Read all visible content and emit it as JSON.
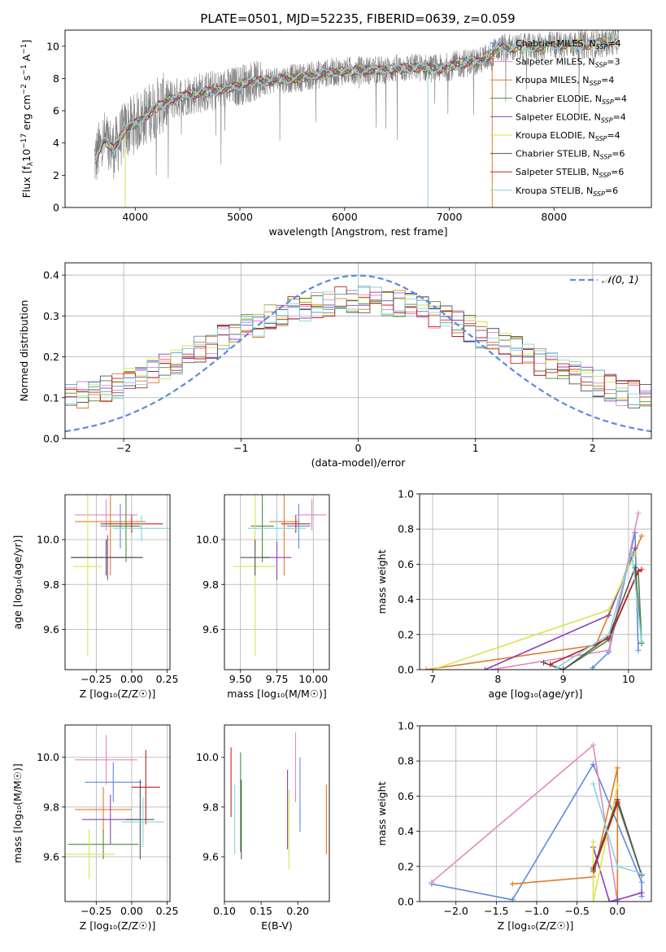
{
  "figure": {
    "title": "PLATE=0501, MJD=52235, FIBERID=0639, z=0.059"
  },
  "colors": {
    "series": [
      "#5b8bdc",
      "#e586c2",
      "#e07b2a",
      "#4d8a3e",
      "#8d3fb5",
      "#d8e54e",
      "#555555",
      "#c4221f",
      "#84d6de"
    ],
    "data": "#808080",
    "gauss": "#5b8bdc",
    "grid": "#b0b0b0"
  },
  "chart_data": [
    {
      "id": "spectrum",
      "type": "line",
      "title": "PLATE=0501, MJD=52235, FIBERID=0639, z=0.059",
      "xlabel": "wavelength [Angstrom, rest frame]",
      "ylabel_main": "Flux [f",
      "ylabel_sub": "λ",
      "ylabel_rest": "10",
      "ylabel_exp1": "−17",
      "ylabel_mid": " erg cm",
      "ylabel_exp2": "−2",
      "ylabel_s": " s",
      "ylabel_exp3": "−1",
      "ylabel_end": " A",
      "ylabel_exp4": "−1",
      "ylabel_close": "]",
      "xlim": [
        3330,
        8930
      ],
      "ylim": [
        0,
        11
      ],
      "xticks": [
        4000,
        5000,
        6000,
        7000,
        8000
      ],
      "yticks": [
        0,
        2,
        4,
        6,
        8,
        10
      ],
      "grid": false,
      "legend_position": "top-right",
      "legend": [
        {
          "base": "Chabrier MILES, N",
          "sub": "SSP",
          "rest": "=4"
        },
        {
          "base": "Salpeter MILES, N",
          "sub": "SSP",
          "rest": "=3"
        },
        {
          "base": "Kroupa MILES, N",
          "sub": "SSP",
          "rest": "=4"
        },
        {
          "base": "Chabrier ELODIE, N",
          "sub": "SSP",
          "rest": "=4"
        },
        {
          "base": "Salpeter ELODIE, N",
          "sub": "SSP",
          "rest": "=4"
        },
        {
          "base": "Kroupa ELODIE, N",
          "sub": "SSP",
          "rest": "=4"
        },
        {
          "base": "Chabrier STELIB, N",
          "sub": "SSP",
          "rest": "=6"
        },
        {
          "base": "Salpeter STELIB, N",
          "sub": "SSP",
          "rest": "=6"
        },
        {
          "base": "Kroupa STELIB, N",
          "sub": "SSP",
          "rest": "=6"
        }
      ],
      "continuum": {
        "x": [
          3620,
          3700,
          3800,
          3900,
          4000,
          4100,
          4200,
          4300,
          4400,
          4500,
          4700,
          4900,
          5100,
          5300,
          5500,
          5700,
          5900,
          6100,
          6300,
          6500,
          6700,
          6900,
          7100,
          7300,
          7420,
          7500,
          7700,
          7900,
          8100,
          8300,
          8500,
          8620
        ],
        "y": [
          3.0,
          4.2,
          3.6,
          4.8,
          5.2,
          5.7,
          6.2,
          6.6,
          6.8,
          7.0,
          7.2,
          7.4,
          7.8,
          7.9,
          8.0,
          8.2,
          8.4,
          8.5,
          8.5,
          8.6,
          8.7,
          8.6,
          8.9,
          9.1,
          9.6,
          9.9,
          9.9,
          10.0,
          10.1,
          10.1,
          10.2,
          10.4
        ]
      }
    },
    {
      "id": "residuals",
      "type": "histogram",
      "xlabel": "(data-model)/error",
      "ylabel": "Normed distribution",
      "xlim": [
        -2.5,
        2.5
      ],
      "ylim": [
        0,
        0.43
      ],
      "xticks": [
        -2,
        -1,
        0,
        1,
        2
      ],
      "yticks": [
        0.0,
        0.1,
        0.2,
        0.3,
        0.4
      ],
      "grid": true,
      "bin_width": 0.1,
      "legend_label": "𝒩(0, 1)",
      "legend_position": "top-right",
      "gaussian": {
        "mean": 0,
        "sigma": 1
      }
    },
    {
      "id": "age-vs-Z",
      "type": "errorbar",
      "xlabel": "Z [log₁₀(Z/Z☉)]",
      "ylabel": "age  [log₁₀(age/yr)]",
      "xlim": [
        -0.47,
        0.27
      ],
      "ylim": [
        9.42,
        10.2
      ],
      "xticks": [
        -0.25,
        0.0,
        0.25
      ],
      "yticks": [
        9.6,
        9.8,
        10.0
      ],
      "grid": true,
      "points": [
        {
          "s": 0,
          "x": -0.08,
          "y": 10.06,
          "xe": 0.14,
          "ye": 0.1
        },
        {
          "s": 1,
          "x": -0.18,
          "y": 10.11,
          "xe": 0.22,
          "ye": 0.07
        },
        {
          "s": 2,
          "x": -0.15,
          "y": 10.08,
          "xe": 0.25,
          "ye": 0.24
        },
        {
          "s": 3,
          "x": -0.04,
          "y": 10.06,
          "xe": 0.1,
          "ye": 0.16
        },
        {
          "s": 4,
          "x": -0.17,
          "y": 9.92,
          "xe": 0.25,
          "ye": 0.1
        },
        {
          "s": 5,
          "x": -0.31,
          "y": 9.88,
          "xe": 0.1,
          "ye": 0.4
        },
        {
          "s": 6,
          "x": -0.18,
          "y": 9.92,
          "xe": 0.25,
          "ye": 0.08
        },
        {
          "s": 7,
          "x": 0.0,
          "y": 10.07,
          "xe": 0.22,
          "ye": 0.04
        },
        {
          "s": 8,
          "x": 0.07,
          "y": 10.05,
          "xe": 0.2,
          "ye": 0.06
        }
      ]
    },
    {
      "id": "age-vs-mass",
      "type": "errorbar",
      "xlabel": "mass [log₁₀(M/M☉)]",
      "ylabel": "",
      "xlim": [
        9.39,
        10.11
      ],
      "ylim": [
        9.42,
        10.2
      ],
      "xticks": [
        9.5,
        9.75,
        10.0
      ],
      "yticks": [
        9.6,
        9.8,
        10.0
      ],
      "grid": true,
      "points": [
        {
          "s": 0,
          "x": 9.9,
          "y": 10.06,
          "xe": 0.08,
          "ye": 0.1
        },
        {
          "s": 1,
          "x": 9.99,
          "y": 10.11,
          "xe": 0.1,
          "ye": 0.07
        },
        {
          "s": 2,
          "x": 9.8,
          "y": 10.08,
          "xe": 0.1,
          "ye": 0.24
        },
        {
          "s": 3,
          "x": 9.65,
          "y": 10.06,
          "xe": 0.08,
          "ye": 0.16
        },
        {
          "s": 4,
          "x": 9.75,
          "y": 9.92,
          "xe": 0.1,
          "ye": 0.1
        },
        {
          "s": 5,
          "x": 9.6,
          "y": 9.88,
          "xe": 0.15,
          "ye": 0.4
        },
        {
          "s": 6,
          "x": 9.6,
          "y": 9.92,
          "xe": 0.1,
          "ye": 0.08
        },
        {
          "s": 7,
          "x": 9.88,
          "y": 10.07,
          "xe": 0.1,
          "ye": 0.04
        },
        {
          "s": 8,
          "x": 9.75,
          "y": 10.05,
          "xe": 0.2,
          "ye": 0.06
        }
      ]
    },
    {
      "id": "mass-weight-vs-age",
      "type": "line",
      "xlabel": "age  [log₁₀(age/yr)]",
      "ylabel": "mass weight",
      "xlim": [
        6.8,
        10.35
      ],
      "ylim": [
        0,
        1
      ],
      "xticks": [
        7,
        8,
        9,
        10
      ],
      "yticks": [
        0.0,
        0.2,
        0.4,
        0.6,
        0.8,
        1.0
      ],
      "grid": true,
      "series": [
        {
          "s": 0,
          "x": [
            9.45,
            9.7,
            10.1,
            10.15
          ],
          "y": [
            0.01,
            0.1,
            0.78,
            0.11
          ]
        },
        {
          "s": 1,
          "x": [
            7.9,
            9.7,
            10.15
          ],
          "y": [
            0.0,
            0.11,
            0.89
          ]
        },
        {
          "s": 2,
          "x": [
            6.9,
            9.5,
            10.2
          ],
          "y": [
            0.0,
            0.14,
            0.76
          ]
        },
        {
          "s": 3,
          "x": [
            9.0,
            9.7,
            10.15,
            10.2
          ],
          "y": [
            0.0,
            0.17,
            0.56,
            0.15
          ]
        },
        {
          "s": 4,
          "x": [
            7.8,
            9.7,
            10.1
          ],
          "y": [
            0.0,
            0.31,
            0.69
          ]
        },
        {
          "s": 5,
          "x": [
            7.0,
            9.7,
            10.1
          ],
          "y": [
            0.0,
            0.34,
            0.66
          ]
        },
        {
          "s": 6,
          "x": [
            8.7,
            9.0,
            9.7,
            10.1,
            10.2
          ],
          "y": [
            0.04,
            0.0,
            0.19,
            0.58,
            0.15
          ]
        },
        {
          "s": 7,
          "x": [
            8.8,
            9.7,
            10.15,
            10.2
          ],
          "y": [
            0.03,
            0.18,
            0.56,
            0.57
          ]
        },
        {
          "s": 8,
          "x": [
            8.9,
            9.7,
            10.05,
            10.2
          ],
          "y": [
            0.01,
            0.2,
            0.67,
            0.16
          ]
        }
      ]
    },
    {
      "id": "mass-vs-Z",
      "type": "errorbar",
      "xlabel": "Z [log₁₀(Z/Z☉)]",
      "ylabel": "mass [log₁₀(M/M☉)]",
      "xlim": [
        -0.47,
        0.27
      ],
      "ylim": [
        9.42,
        10.13
      ],
      "xticks": [
        -0.25,
        0.0,
        0.25
      ],
      "yticks": [
        9.6,
        9.8,
        10.0
      ],
      "grid": true,
      "points": [
        {
          "s": 0,
          "x": -0.13,
          "y": 9.9,
          "xe": 0.2,
          "ye": 0.08
        },
        {
          "s": 1,
          "x": -0.18,
          "y": 9.99,
          "xe": 0.22,
          "ye": 0.1
        },
        {
          "s": 2,
          "x": -0.2,
          "y": 9.79,
          "xe": 0.2,
          "ye": 0.09
        },
        {
          "s": 3,
          "x": -0.2,
          "y": 9.65,
          "xe": 0.25,
          "ye": 0.06
        },
        {
          "s": 4,
          "x": -0.15,
          "y": 9.75,
          "xe": 0.2,
          "ye": 0.1
        },
        {
          "s": 5,
          "x": -0.3,
          "y": 9.61,
          "xe": 0.18,
          "ye": 0.1
        },
        {
          "s": 6,
          "x": 0.06,
          "y": 9.75,
          "xe": 0.1,
          "ye": 0.16
        },
        {
          "s": 7,
          "x": 0.1,
          "y": 9.88,
          "xe": 0.1,
          "ye": 0.15
        },
        {
          "s": 8,
          "x": 0.08,
          "y": 9.74,
          "xe": 0.15,
          "ye": 0.1
        }
      ]
    },
    {
      "id": "mass-vs-ebv",
      "type": "errorbar",
      "xlabel": "E(B-V)",
      "ylabel": "",
      "xlim": [
        0.1,
        0.243
      ],
      "ylim": [
        9.42,
        10.13
      ],
      "xticks": [
        0.1,
        0.15,
        0.2
      ],
      "yticks": [
        9.6,
        9.8,
        10.0
      ],
      "grid": false,
      "points": [
        {
          "s": 0,
          "x": 0.203,
          "y": 9.85,
          "xe": 0,
          "ye": 0.15
        },
        {
          "s": 1,
          "x": 0.197,
          "y": 9.96,
          "xe": 0,
          "ye": 0.14
        },
        {
          "s": 2,
          "x": 0.239,
          "y": 9.75,
          "xe": 0,
          "ye": 0.14
        },
        {
          "s": 3,
          "x": 0.122,
          "y": 9.82,
          "xe": 0,
          "ye": 0.2
        },
        {
          "s": 4,
          "x": 0.186,
          "y": 9.79,
          "xe": 0,
          "ye": 0.16
        },
        {
          "s": 5,
          "x": 0.188,
          "y": 9.71,
          "xe": 0,
          "ye": 0.16
        },
        {
          "s": 6,
          "x": 0.123,
          "y": 9.75,
          "xe": 0,
          "ye": 0.16
        },
        {
          "s": 7,
          "x": 0.109,
          "y": 9.9,
          "xe": 0,
          "ye": 0.14
        },
        {
          "s": 8,
          "x": 0.114,
          "y": 9.75,
          "xe": 0,
          "ye": 0.14
        }
      ]
    },
    {
      "id": "mass-weight-vs-Z",
      "type": "line",
      "xlabel": "Z [log₁₀(Z/Z☉)]",
      "ylabel": "mass weight",
      "xlim": [
        -2.45,
        0.42
      ],
      "ylim": [
        0,
        1
      ],
      "xticks": [
        -2.0,
        -1.5,
        -1.0,
        -0.5,
        0.0
      ],
      "yticks": [
        0.0,
        0.2,
        0.4,
        0.6,
        0.8,
        1.0
      ],
      "grid": true,
      "series": [
        {
          "s": 0,
          "x": [
            -2.3,
            -1.3,
            -0.3,
            0.3,
            0.3
          ],
          "y": [
            0.1,
            0.01,
            0.78,
            0.11,
            0.03
          ]
        },
        {
          "s": 1,
          "x": [
            -2.3,
            -0.3,
            0.0
          ],
          "y": [
            0.11,
            0.89,
            0.0
          ]
        },
        {
          "s": 2,
          "x": [
            -1.3,
            -0.3,
            0.0,
            0.0
          ],
          "y": [
            0.1,
            0.14,
            0.76,
            0.0
          ]
        },
        {
          "s": 3,
          "x": [
            -0.3,
            0.0,
            0.3
          ],
          "y": [
            0.17,
            0.56,
            0.15
          ]
        },
        {
          "s": 4,
          "x": [
            -0.3,
            -0.1,
            0.0,
            0.3
          ],
          "y": [
            0.31,
            0.0,
            0.01,
            0.05
          ]
        },
        {
          "s": 5,
          "x": [
            -0.3,
            -0.3,
            0.0
          ],
          "y": [
            0.34,
            0.0,
            0.66
          ]
        },
        {
          "s": 6,
          "x": [
            -0.3,
            0.0,
            0.3
          ],
          "y": [
            0.19,
            0.58,
            0.15
          ]
        },
        {
          "s": 7,
          "x": [
            -0.3,
            0.0,
            0.0
          ],
          "y": [
            0.18,
            0.56,
            0.57
          ]
        },
        {
          "s": 8,
          "x": [
            -0.3,
            0.0,
            0.3
          ],
          "y": [
            0.67,
            0.2,
            0.16
          ]
        }
      ]
    }
  ]
}
